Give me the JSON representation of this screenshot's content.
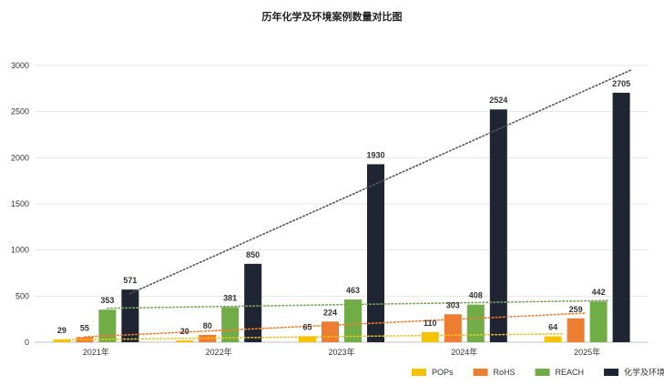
{
  "chart_data": {
    "type": "bar",
    "title": "历年化学及环境案例数量对比图",
    "categories": [
      "2021年",
      "2022年",
      "2023年",
      "2024年",
      "2025年"
    ],
    "series": [
      {
        "name": "POPs",
        "color": "#F5C300",
        "values": [
          29,
          20,
          65,
          110,
          64
        ]
      },
      {
        "name": "RoHS",
        "color": "#ED7D31",
        "values": [
          55,
          80,
          224,
          303,
          259
        ]
      },
      {
        "name": "REACH",
        "color": "#70AD47",
        "values": [
          353,
          381,
          463,
          408,
          442
        ]
      },
      {
        "name": "化学及环境",
        "color": "#1F2533",
        "values": [
          571,
          850,
          1930,
          2524,
          2705
        ]
      }
    ],
    "yticks": [
      0,
      500,
      1000,
      1500,
      2000,
      2500,
      3000
    ],
    "ylim": [
      0,
      3000
    ],
    "grid": true,
    "legend": "bottom-right",
    "trendlines": "dotted linear trend per series"
  }
}
